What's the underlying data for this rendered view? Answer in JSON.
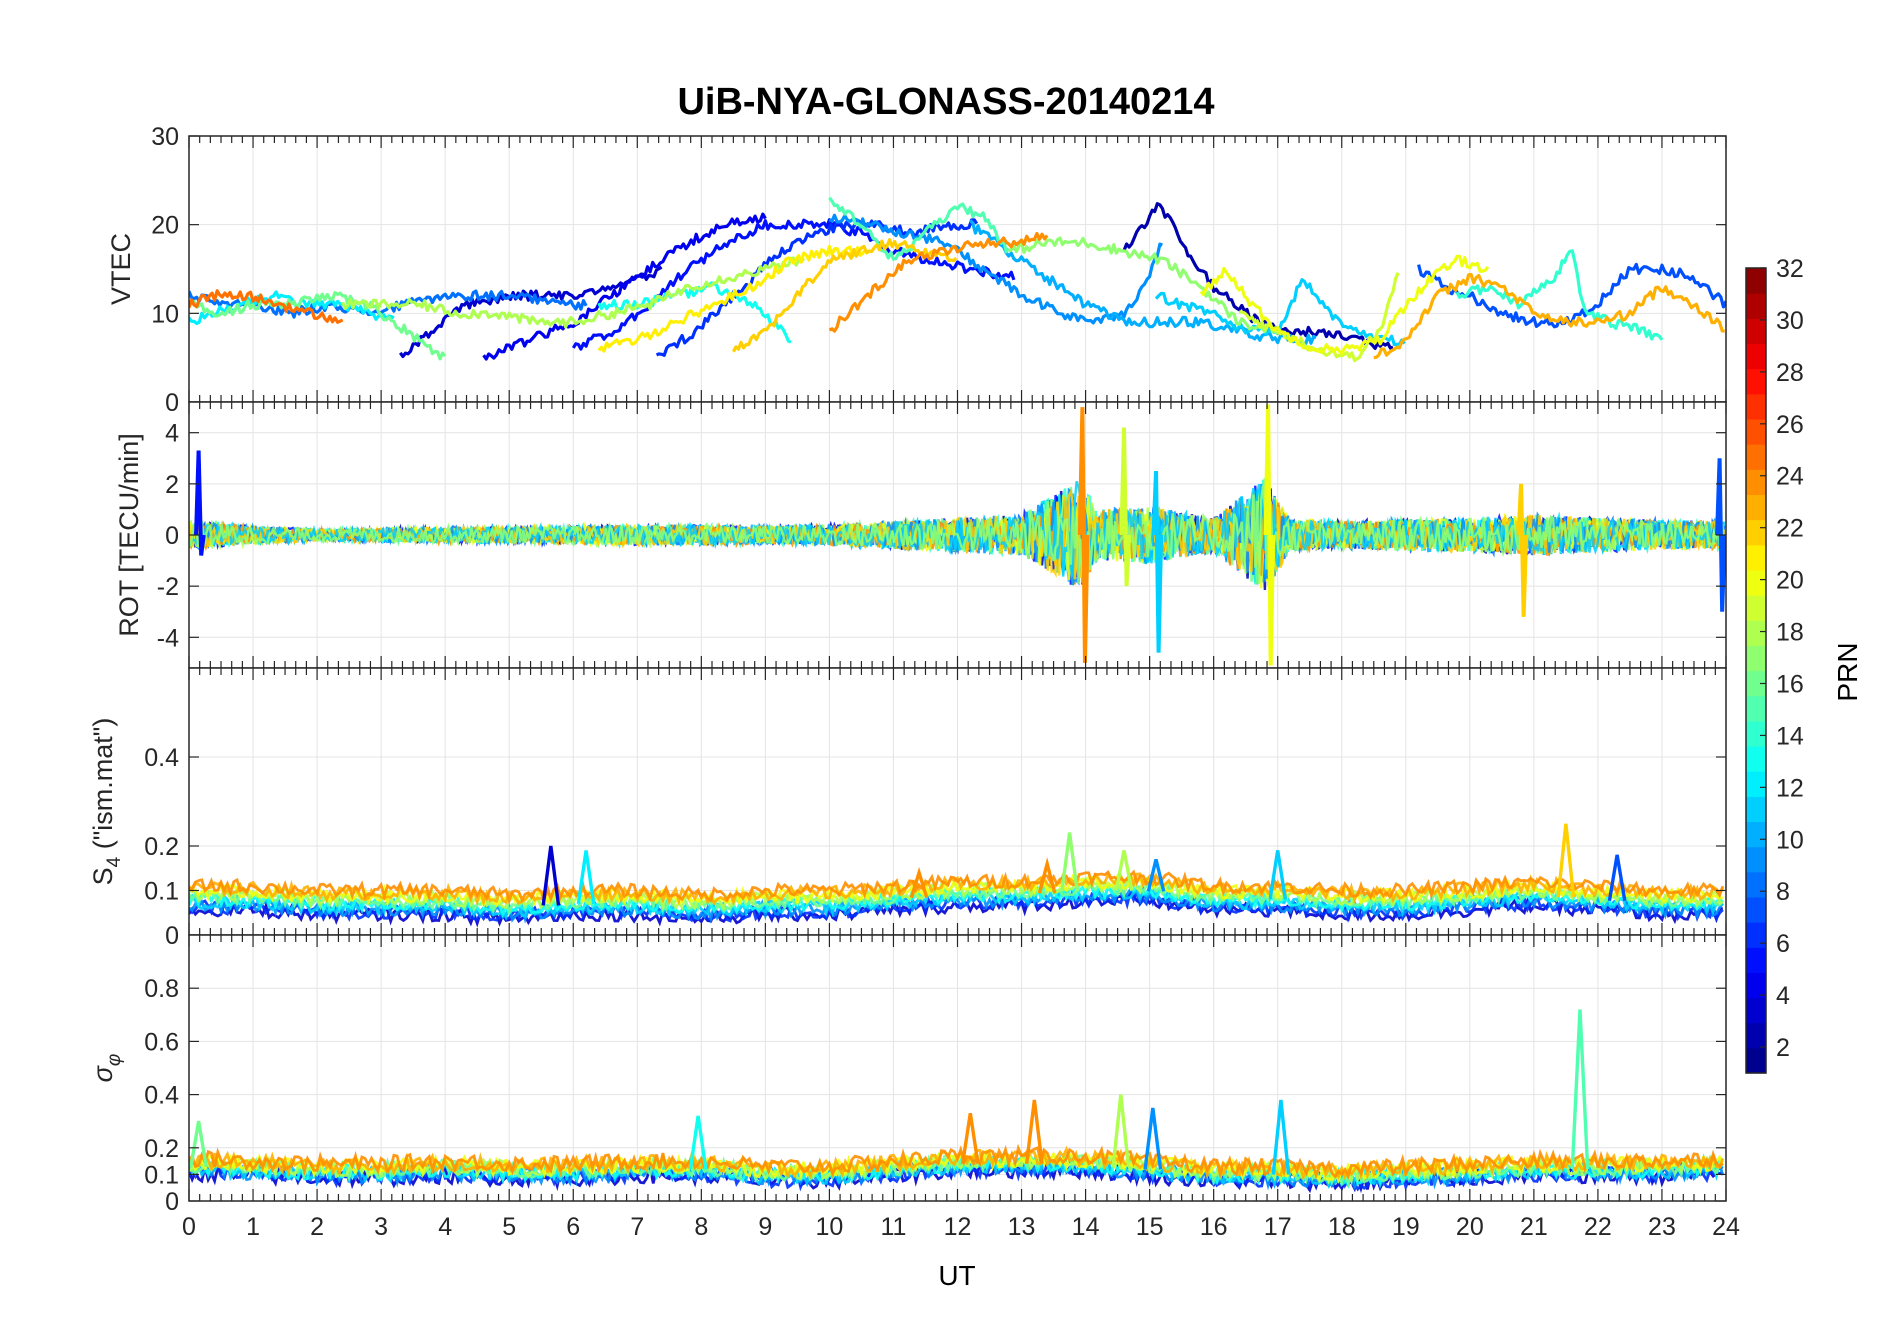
{
  "figure": {
    "title": "UiB-NYA-GLONASS-20140214",
    "xlabel": "UT"
  },
  "colorbar": {
    "label": "PRN",
    "range": [
      1,
      32
    ],
    "tick_labels": [
      "2",
      "4",
      "6",
      "8",
      "10",
      "12",
      "14",
      "16",
      "18",
      "20",
      "22",
      "24",
      "26",
      "28",
      "30",
      "32"
    ],
    "colormap": "jet"
  },
  "chart_data": [
    {
      "type": "line",
      "panel": "VTEC",
      "ylabel": "VTEC",
      "xlim": [
        0,
        24
      ],
      "ylim": [
        0,
        30
      ],
      "xticks": [
        "0",
        "1",
        "2",
        "3",
        "4",
        "5",
        "6",
        "7",
        "8",
        "9",
        "10",
        "11",
        "12",
        "13",
        "14",
        "15",
        "16",
        "17",
        "18",
        "19",
        "20",
        "21",
        "22",
        "23",
        "24"
      ],
      "yticks": [
        "0",
        "10",
        "20",
        "30"
      ],
      "grid": true,
      "series": [
        {
          "prn": 2,
          "x": [
            14.6,
            15.1,
            15.3,
            15.6,
            16.0,
            16.5,
            17.0,
            17.6,
            18.2,
            18.8
          ],
          "values": [
            17,
            22,
            21,
            17,
            13,
            10,
            8,
            8,
            7,
            6
          ]
        },
        {
          "prn": 3,
          "x": [
            3.3,
            3.8,
            4.3,
            5.0,
            5.6,
            6.2,
            6.6,
            7.1,
            7.4
          ],
          "values": [
            5,
            8,
            11,
            12,
            12,
            12,
            13,
            14,
            15
          ]
        },
        {
          "prn": 4,
          "x": [
            4.6,
            5.3,
            6.0,
            6.6,
            7.2,
            7.8,
            8.4,
            9.0
          ],
          "values": [
            5,
            7,
            9,
            12,
            15,
            18,
            20,
            21
          ]
        },
        {
          "prn": 5,
          "x": [
            6.0,
            6.6,
            7.2,
            7.8,
            8.4,
            9.0,
            9.5,
            10.0,
            10.5,
            11.0,
            11.6,
            12.2,
            12.9
          ],
          "values": [
            6,
            8,
            11,
            15,
            18,
            20,
            20,
            20,
            19,
            17,
            16,
            15,
            14
          ]
        },
        {
          "prn": 6,
          "x": [
            7.3,
            7.9,
            8.5,
            9.1,
            9.7,
            10.3,
            10.8,
            11.3,
            11.8,
            12.3
          ],
          "values": [
            5,
            8,
            12,
            16,
            19,
            20,
            20,
            19,
            20,
            20
          ]
        },
        {
          "prn": 7,
          "x": [
            19.2,
            19.6,
            20.0,
            20.5,
            21.0,
            21.5,
            22.0,
            22.5,
            23.0,
            23.5,
            24.0
          ],
          "values": [
            15,
            13,
            12,
            10,
            9,
            9,
            11,
            15,
            15,
            14,
            11
          ]
        },
        {
          "prn": 8,
          "x": [
            0.0,
            0.5,
            1.0,
            1.6,
            2.2,
            2.8,
            3.4,
            4.0,
            4.6,
            5.2,
            5.8,
            6.2
          ],
          "values": [
            12,
            11,
            11,
            10,
            11,
            10,
            11,
            12,
            12,
            12,
            11,
            11
          ]
        },
        {
          "prn": 9,
          "x": [
            10.0,
            10.6,
            11.2,
            11.8,
            12.4,
            13.0,
            13.6,
            14.2,
            14.6,
            14.9,
            15.2
          ],
          "values": [
            21,
            20,
            19,
            18,
            15,
            12,
            10,
            9,
            10,
            13,
            18
          ]
        },
        {
          "prn": 10,
          "x": [
            12.2,
            12.8,
            13.4,
            14.0,
            14.6,
            15.2,
            15.8,
            16.4,
            17.0,
            17.6
          ],
          "values": [
            20,
            17,
            14,
            11,
            9,
            9,
            9,
            8,
            7,
            7
          ]
        },
        {
          "prn": 11,
          "x": [
            15.1,
            15.5,
            16.0,
            16.5,
            17.0,
            17.4,
            17.8,
            18.2,
            18.6,
            19.0
          ],
          "values": [
            12,
            11,
            10,
            8,
            8,
            14,
            10,
            8,
            7,
            7
          ]
        },
        {
          "prn": 12,
          "x": [
            0.0,
            0.4,
            0.8,
            1.3,
            1.8,
            2.3,
            2.8,
            3.2
          ],
          "values": [
            9,
            10,
            11,
            12,
            11,
            11,
            10,
            9
          ]
        },
        {
          "prn": 13,
          "x": [
            6.4,
            7.0,
            7.6,
            8.2,
            8.8,
            9.4
          ],
          "values": [
            11,
            11,
            12,
            13,
            11,
            7
          ]
        },
        {
          "prn": 14,
          "x": [
            19.8,
            20.3,
            20.8,
            21.3,
            21.6,
            21.8,
            22.2,
            22.7,
            23.0
          ],
          "values": [
            12,
            13,
            11,
            14,
            17,
            10,
            9,
            8,
            7
          ]
        },
        {
          "prn": 15,
          "x": [
            10.0,
            10.5,
            11.0,
            11.5,
            12.0,
            12.4,
            12.8
          ],
          "values": [
            23,
            20,
            16,
            19,
            22,
            21,
            17
          ]
        },
        {
          "prn": 16,
          "x": [
            0.0,
            0.5,
            1.0,
            1.6,
            2.2,
            2.8,
            3.4,
            4.0
          ],
          "values": [
            11,
            10,
            11,
            11,
            12,
            11,
            8,
            5
          ]
        },
        {
          "prn": 17,
          "x": [
            12.8,
            13.4,
            14.0,
            14.6,
            15.2,
            15.8,
            16.4,
            17.0
          ],
          "values": [
            17,
            18,
            18,
            17,
            16,
            13,
            9,
            8
          ]
        },
        {
          "prn": 18,
          "x": [
            2.4,
            3.0,
            3.6,
            4.2,
            4.8,
            5.4,
            6.0,
            6.6,
            7.2,
            7.8,
            8.4,
            9.0,
            9.6
          ],
          "values": [
            11,
            11,
            11,
            10,
            10,
            9,
            9,
            10,
            11,
            13,
            14,
            15,
            16
          ]
        },
        {
          "prn": 19,
          "x": [
            16.4,
            17.0,
            17.6,
            18.2,
            18.6,
            18.9
          ],
          "values": [
            10,
            8,
            6,
            5,
            8,
            15
          ]
        },
        {
          "prn": 20,
          "x": [
            15.8,
            16.2,
            16.6,
            17.0,
            17.6,
            18.2,
            18.6,
            19.0,
            19.4,
            19.8,
            20.3
          ],
          "values": [
            12,
            15,
            11,
            8,
            6,
            6,
            7,
            11,
            14,
            16,
            15
          ]
        },
        {
          "prn": 21,
          "x": [
            6.4,
            7.0,
            7.6,
            8.2,
            8.8,
            9.4,
            10.0,
            10.6
          ],
          "values": [
            6,
            7,
            9,
            11,
            13,
            16,
            17,
            17
          ]
        },
        {
          "prn": 22,
          "x": [
            8.5,
            9.0,
            9.5,
            10.0,
            10.5,
            11.0,
            11.5,
            12.0
          ],
          "values": [
            6,
            8,
            12,
            16,
            17,
            18,
            17,
            16
          ]
        },
        {
          "prn": 23,
          "x": [
            18.5,
            19.0,
            19.5,
            20.0,
            20.5,
            21.0,
            21.5,
            22.0,
            22.5,
            23.0,
            23.5,
            24.0
          ],
          "values": [
            5,
            7,
            12,
            14,
            13,
            10,
            9,
            9,
            10,
            13,
            11,
            8
          ]
        },
        {
          "prn": 24,
          "x": [
            10.0,
            10.6,
            11.2,
            11.8,
            12.4,
            13.0,
            13.4
          ],
          "values": [
            8,
            12,
            16,
            17,
            18,
            18,
            19
          ]
        },
        {
          "prn": 25,
          "x": [
            0.0,
            0.4,
            0.9,
            1.4,
            1.9,
            2.4
          ],
          "values": [
            11,
            12,
            12,
            11,
            10,
            9
          ]
        }
      ]
    },
    {
      "type": "line",
      "panel": "ROT",
      "ylabel": "ROT [TECU/min]",
      "xlim": [
        0,
        24
      ],
      "ylim": [
        -5.2,
        5.2
      ],
      "yticks": [
        "-4",
        "-2",
        "0",
        "2",
        "4"
      ],
      "grid": true,
      "envelope": {
        "x": [
          0,
          1,
          2,
          3,
          4,
          5,
          6,
          7,
          8,
          9,
          10,
          11,
          12,
          13,
          13.9,
          14.2,
          15,
          15.5,
          16,
          16.8,
          17.2,
          18,
          19,
          20,
          21,
          22,
          23,
          24
        ],
        "amplitude": [
          1.2,
          0.8,
          0.5,
          0.6,
          0.7,
          0.7,
          0.8,
          0.9,
          0.9,
          0.8,
          0.9,
          1.2,
          1.5,
          1.8,
          4.8,
          2.2,
          2.5,
          2.0,
          1.5,
          5.0,
          1.4,
          1.2,
          1.4,
          1.5,
          1.8,
          1.5,
          1.3,
          1.2
        ]
      },
      "spikes": [
        {
          "prn": 24,
          "x": 13.95,
          "min": -5.0,
          "max": 5.0
        },
        {
          "prn": 20,
          "x": 16.85,
          "min": -5.1,
          "max": 5.1
        },
        {
          "prn": 11,
          "x": 15.1,
          "min": -4.6,
          "max": 2.5
        },
        {
          "prn": 19,
          "x": 14.6,
          "min": -2.0,
          "max": 4.2
        },
        {
          "prn": 22,
          "x": 20.8,
          "min": -3.2,
          "max": 2.0
        },
        {
          "prn": 5,
          "x": 0.15,
          "min": -0.8,
          "max": 3.3
        },
        {
          "prn": 7,
          "x": 23.9,
          "min": -3.0,
          "max": 3.0
        }
      ]
    },
    {
      "type": "line",
      "panel": "S4",
      "ylabel": "S4 (\"ism.mat\")",
      "xlim": [
        0,
        24
      ],
      "ylim": [
        0,
        0.6
      ],
      "yticks": [
        "0",
        "0.1",
        "0.2",
        "0.4"
      ],
      "grid": true,
      "baseline": {
        "x": [
          0,
          1,
          2,
          3,
          4,
          5,
          6,
          7,
          8,
          9,
          10,
          11,
          12,
          13,
          14,
          15,
          16,
          17,
          18,
          19,
          20,
          21,
          22,
          23,
          24
        ],
        "values": [
          0.08,
          0.08,
          0.07,
          0.07,
          0.07,
          0.06,
          0.07,
          0.07,
          0.06,
          0.07,
          0.07,
          0.08,
          0.09,
          0.09,
          0.1,
          0.1,
          0.08,
          0.08,
          0.07,
          0.07,
          0.08,
          0.09,
          0.08,
          0.07,
          0.07
        ]
      },
      "spikes": [
        {
          "prn": 3,
          "x": 5.65,
          "value": 0.2
        },
        {
          "prn": 12,
          "x": 6.2,
          "value": 0.19
        },
        {
          "prn": 17,
          "x": 13.75,
          "value": 0.23
        },
        {
          "prn": 18,
          "x": 14.6,
          "value": 0.19
        },
        {
          "prn": 9,
          "x": 15.1,
          "value": 0.17
        },
        {
          "prn": 11,
          "x": 17.0,
          "value": 0.19
        },
        {
          "prn": 22,
          "x": 21.5,
          "value": 0.25
        },
        {
          "prn": 7,
          "x": 22.3,
          "value": 0.18
        },
        {
          "prn": 24,
          "x": 13.4,
          "value": 0.16
        },
        {
          "prn": 24,
          "x": 11.4,
          "value": 0.14
        }
      ]
    },
    {
      "type": "line",
      "panel": "sigma_phi",
      "ylabel": "σφ",
      "xlim": [
        0,
        24
      ],
      "ylim": [
        0,
        1
      ],
      "yticks": [
        "0",
        "0.1",
        "0.2",
        "0.4",
        "0.6",
        "0.8"
      ],
      "grid": true,
      "baseline": {
        "x": [
          0,
          1,
          2,
          3,
          4,
          5,
          6,
          7,
          8,
          9,
          10,
          11,
          12,
          13,
          14,
          15,
          16,
          17,
          18,
          19,
          20,
          21,
          22,
          23,
          24
        ],
        "values": [
          0.13,
          0.12,
          0.11,
          0.11,
          0.12,
          0.11,
          0.11,
          0.12,
          0.12,
          0.1,
          0.1,
          0.12,
          0.14,
          0.14,
          0.14,
          0.12,
          0.1,
          0.1,
          0.09,
          0.1,
          0.11,
          0.12,
          0.12,
          0.12,
          0.13
        ]
      },
      "spikes": [
        {
          "prn": 15,
          "x": 21.72,
          "value": 0.72
        },
        {
          "prn": 18,
          "x": 14.55,
          "value": 0.4
        },
        {
          "prn": 24,
          "x": 13.2,
          "value": 0.38
        },
        {
          "prn": 11,
          "x": 17.05,
          "value": 0.38
        },
        {
          "prn": 13,
          "x": 7.95,
          "value": 0.32
        },
        {
          "prn": 9,
          "x": 15.05,
          "value": 0.35
        },
        {
          "prn": 24,
          "x": 12.2,
          "value": 0.33
        },
        {
          "prn": 16,
          "x": 0.15,
          "value": 0.3
        }
      ]
    }
  ]
}
